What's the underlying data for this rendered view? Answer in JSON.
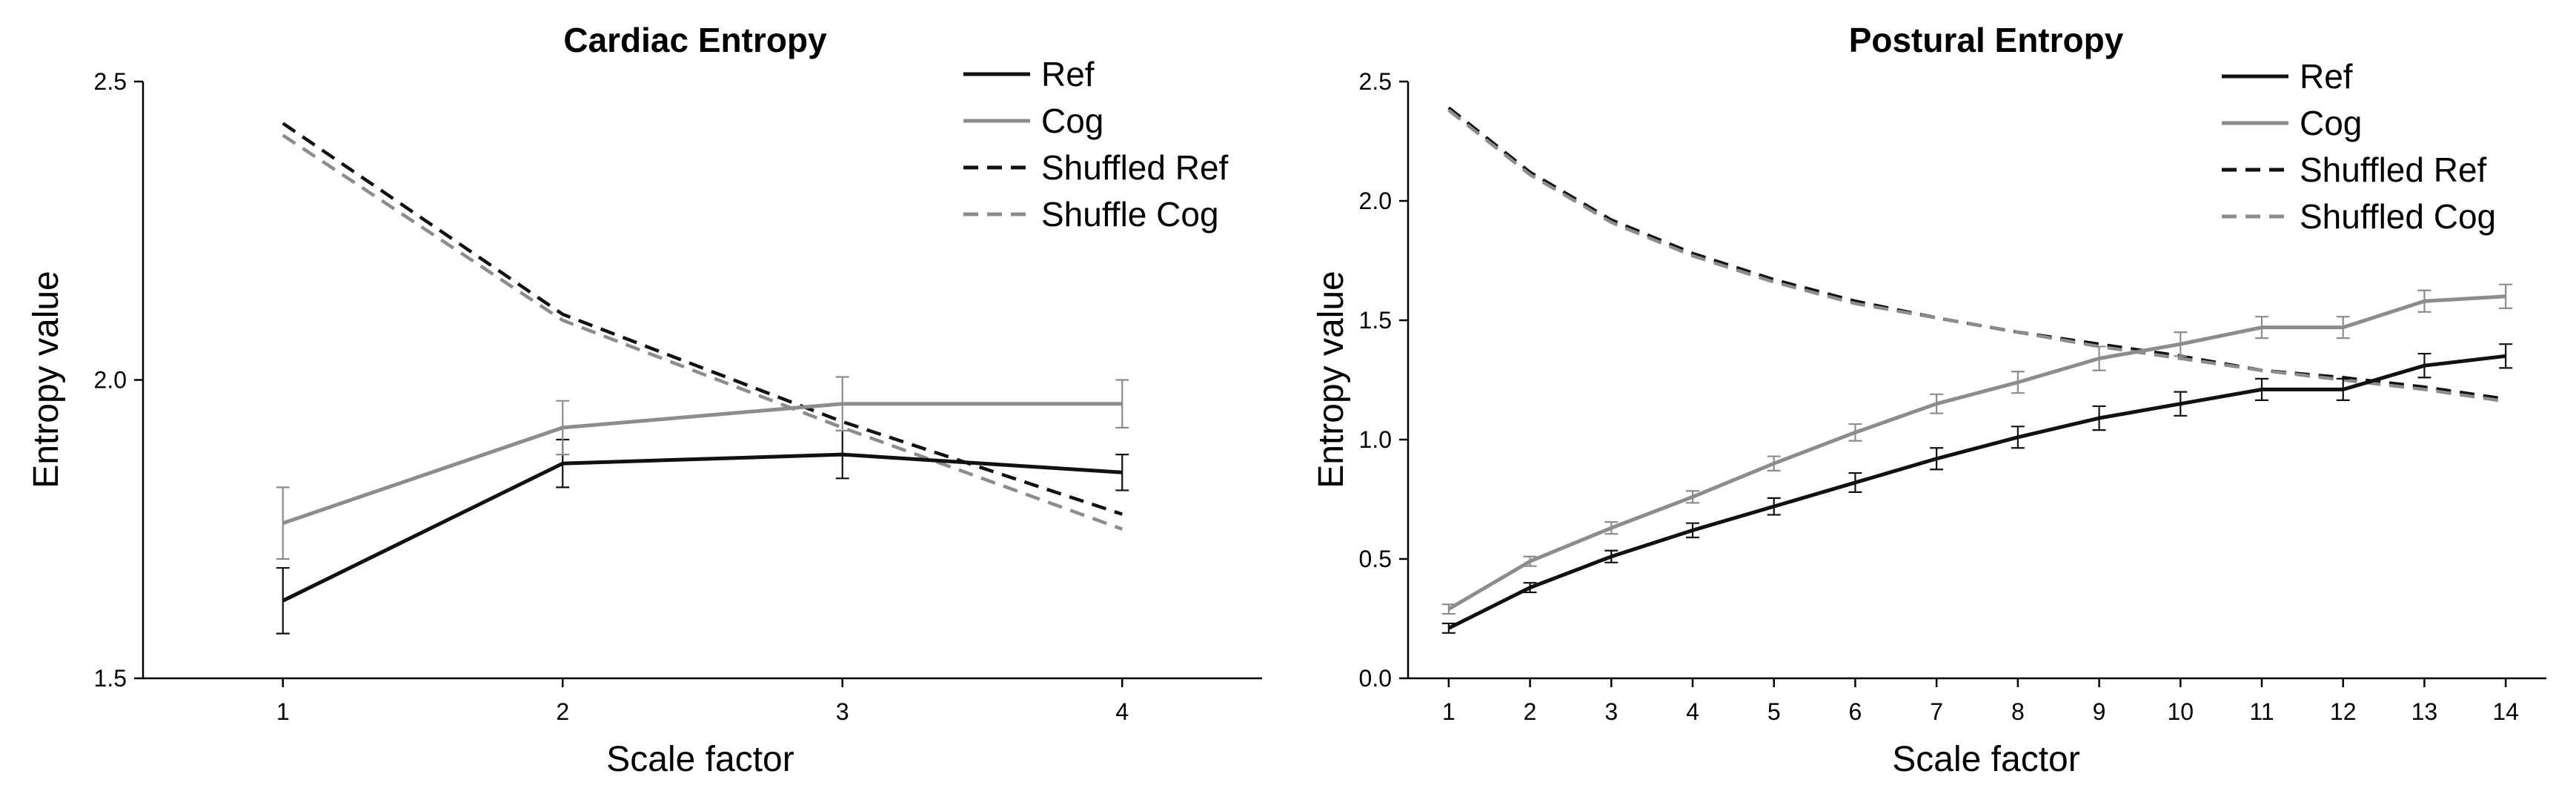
{
  "colors": {
    "ref": "#111111",
    "cog": "#8c8c8c",
    "axis": "#000000"
  },
  "chart_data": [
    {
      "type": "line",
      "title": "Cardiac Entropy",
      "xlabel": "Scale factor",
      "ylabel": "Entropy value",
      "x": [
        1,
        2,
        3,
        4
      ],
      "xlim": [
        0.5,
        4.5
      ],
      "ylim": [
        1.5,
        2.5
      ],
      "yticks": [
        1.5,
        2.0,
        2.5
      ],
      "ytick_labels": [
        "1.5",
        "2.0",
        "2.5"
      ],
      "legend_position": "top-right",
      "series": [
        {
          "name": "Ref",
          "style": "solid",
          "color": "#111111",
          "values": [
            1.63,
            1.86,
            1.875,
            1.845
          ],
          "errors": [
            0.055,
            0.04,
            0.04,
            0.03
          ]
        },
        {
          "name": "Cog",
          "style": "solid",
          "color": "#8c8c8c",
          "values": [
            1.76,
            1.92,
            1.96,
            1.96
          ],
          "errors": [
            0.06,
            0.045,
            0.045,
            0.04
          ]
        },
        {
          "name": "Shuffled Ref",
          "style": "dashed",
          "color": "#111111",
          "values": [
            2.43,
            2.11,
            1.93,
            1.775
          ]
        },
        {
          "name": "Shuffle Cog",
          "style": "dashed",
          "color": "#8c8c8c",
          "values": [
            2.41,
            2.1,
            1.92,
            1.75
          ]
        }
      ]
    },
    {
      "type": "line",
      "title": "Postural Entropy",
      "xlabel": "Scale factor",
      "ylabel": "Entropy value",
      "x": [
        1,
        2,
        3,
        4,
        5,
        6,
        7,
        8,
        9,
        10,
        11,
        12,
        13,
        14
      ],
      "xlim": [
        0.5,
        14.5
      ],
      "ylim": [
        0,
        2.5
      ],
      "yticks": [
        0,
        0.5,
        1.0,
        1.5,
        2.0,
        2.5
      ],
      "ytick_labels": [
        "0.0",
        "0.5",
        "1.0",
        "1.5",
        "2.0",
        "2.5"
      ],
      "legend_position": "top-right",
      "series": [
        {
          "name": "Ref",
          "style": "solid",
          "color": "#111111",
          "values": [
            0.21,
            0.38,
            0.51,
            0.62,
            0.72,
            0.82,
            0.92,
            1.01,
            1.09,
            1.15,
            1.21,
            1.21,
            1.31,
            1.35
          ],
          "errors": [
            0.02,
            0.02,
            0.025,
            0.03,
            0.035,
            0.04,
            0.045,
            0.045,
            0.05,
            0.05,
            0.045,
            0.045,
            0.05,
            0.05
          ]
        },
        {
          "name": "Cog",
          "style": "solid",
          "color": "#8c8c8c",
          "values": [
            0.29,
            0.49,
            0.63,
            0.76,
            0.9,
            1.03,
            1.15,
            1.24,
            1.34,
            1.4,
            1.47,
            1.47,
            1.58,
            1.6
          ],
          "errors": [
            0.02,
            0.02,
            0.025,
            0.025,
            0.03,
            0.035,
            0.04,
            0.045,
            0.05,
            0.05,
            0.045,
            0.045,
            0.045,
            0.05
          ]
        },
        {
          "name": "Shuffled Ref",
          "style": "dashed",
          "color": "#111111",
          "values": [
            2.39,
            2.12,
            1.92,
            1.78,
            1.67,
            1.58,
            1.51,
            1.45,
            1.4,
            1.35,
            1.29,
            1.26,
            1.22,
            1.17
          ]
        },
        {
          "name": "Shuffled Cog",
          "style": "dashed",
          "color": "#8c8c8c",
          "values": [
            2.38,
            2.11,
            1.91,
            1.77,
            1.66,
            1.57,
            1.51,
            1.45,
            1.39,
            1.34,
            1.29,
            1.25,
            1.21,
            1.16
          ]
        }
      ]
    }
  ]
}
